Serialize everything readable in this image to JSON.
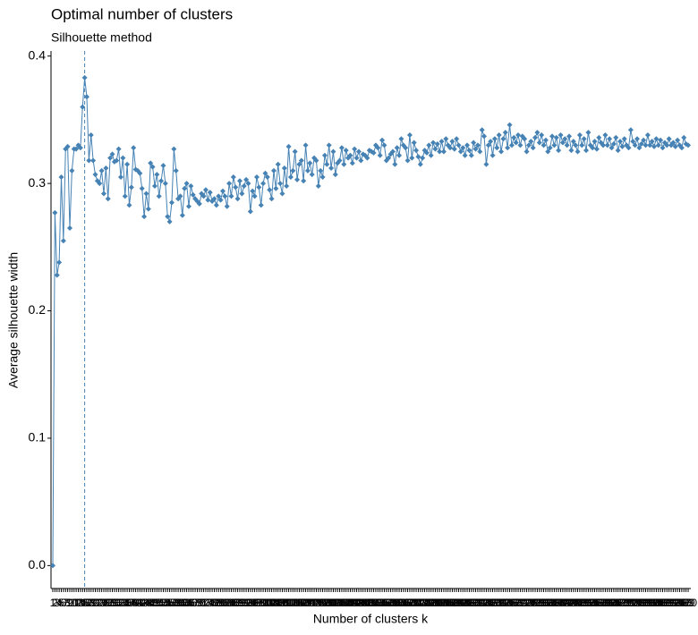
{
  "chart_data": {
    "type": "line",
    "title": "Optimal number of clusters",
    "subtitle": "Silhouette method",
    "x_label": "Number of clusters k",
    "y_label": "Average silhouette width",
    "color": "#4682b4",
    "vline": "16",
    "ylim": [
      -0.018,
      0.404
    ],
    "yticks": [
      {
        "value": 0,
        "label": "0.0"
      },
      0.1,
      0.2,
      0.3,
      0.4
    ],
    "categories": [
      "1",
      "2",
      "3",
      "4",
      "5",
      "6",
      "7",
      "8",
      "9",
      "10",
      "11",
      "12",
      "13",
      "14",
      "15",
      "16",
      "17",
      "18",
      "19",
      "20",
      "21",
      "22",
      "23",
      "24",
      "25",
      "26",
      "27",
      "28",
      "29",
      "30",
      "31",
      "32",
      "33",
      "34",
      "35",
      "36",
      "37",
      "38",
      "39",
      "40",
      "41",
      "42",
      "43",
      "44",
      "45",
      "46",
      "47",
      "48",
      "49",
      "50",
      "51",
      "52",
      "53",
      "54",
      "55",
      "56",
      "57",
      "58",
      "59",
      "60",
      "61",
      "62",
      "63",
      "64",
      "65",
      "66",
      "67",
      "68",
      "69",
      "70",
      "71",
      "72",
      "73",
      "74",
      "75",
      "76",
      "77",
      "78",
      "79",
      "80",
      "81",
      "82",
      "83",
      "84",
      "85",
      "86",
      "87",
      "88",
      "89",
      "90",
      "91",
      "92",
      "93",
      "94",
      "95",
      "96",
      "97",
      "98",
      "99",
      "100",
      "101",
      "102",
      "103",
      "104",
      "105",
      "106",
      "107",
      "108",
      "109",
      "110",
      "111",
      "112",
      "113",
      "114",
      "115",
      "116",
      "117",
      "118",
      "119",
      "120",
      "121",
      "122",
      "123",
      "124",
      "125",
      "126",
      "127",
      "128",
      "129",
      "130",
      "131",
      "132",
      "133",
      "134",
      "135",
      "136",
      "137",
      "138",
      "139",
      "140",
      "141",
      "142",
      "143",
      "144",
      "145",
      "146",
      "147",
      "148",
      "149",
      "150",
      "151",
      "152",
      "153",
      "154",
      "155",
      "156",
      "157",
      "158",
      "159",
      "160",
      "161",
      "162",
      "163",
      "164",
      "165",
      "166",
      "167",
      "168",
      "169",
      "170",
      "171",
      "172",
      "173",
      "174",
      "175",
      "176",
      "177",
      "178",
      "179",
      "180",
      "181",
      "182",
      "183",
      "184",
      "185",
      "186",
      "187",
      "188",
      "189",
      "190",
      "191",
      "192",
      "193",
      "194",
      "195",
      "196",
      "197",
      "198",
      "199",
      "200",
      "201",
      "202",
      "203",
      "204",
      "205",
      "206",
      "207",
      "208",
      "209",
      "210",
      "211",
      "212",
      "213",
      "214",
      "215",
      "216",
      "217",
      "218",
      "219",
      "220",
      "221",
      "222",
      "223",
      "224",
      "225",
      "226",
      "227",
      "228",
      "229",
      "230",
      "231",
      "232",
      "233",
      "234",
      "235",
      "236",
      "237",
      "238",
      "239",
      "240",
      "241",
      "242",
      "243",
      "244",
      "245",
      "246",
      "247",
      "248",
      "249",
      "250",
      "251",
      "252",
      "253",
      "254",
      "255",
      "256",
      "257",
      "258",
      "259",
      "260",
      "261",
      "262",
      "263",
      "264",
      "265",
      "266",
      "267",
      "268",
      "269",
      "270",
      "271",
      "272",
      "273",
      "274",
      "275",
      "276",
      "277",
      "278",
      "279",
      "280",
      "281",
      "282",
      "283",
      "284",
      "285",
      "286",
      "287",
      "288",
      "289",
      "290",
      "291",
      "292",
      "293",
      "294",
      "295",
      "296",
      "297",
      "298",
      "299",
      "300"
    ],
    "values": [
      0,
      0.277,
      0.228,
      0.238,
      0.305,
      0.255,
      0.327,
      0.329,
      0.265,
      0.31,
      0.327,
      0.327,
      0.33,
      0.328,
      0.36,
      0.383,
      0.368,
      0.318,
      0.338,
      0.318,
      0.307,
      0.302,
      0.3,
      0.31,
      0.292,
      0.312,
      0.288,
      0.32,
      0.323,
      0.317,
      0.318,
      0.327,
      0.305,
      0.32,
      0.29,
      0.315,
      0.283,
      0.297,
      0.328,
      0.311,
      0.31,
      0.308,
      0.296,
      0.274,
      0.292,
      0.28,
      0.316,
      0.313,
      0.298,
      0.307,
      0.29,
      0.302,
      0.314,
      0.3,
      0.274,
      0.27,
      0.285,
      0.327,
      0.31,
      0.288,
      0.29,
      0.275,
      0.296,
      0.3,
      0.282,
      0.298,
      0.291,
      0.288,
      0.286,
      0.284,
      0.292,
      0.29,
      0.295,
      0.287,
      0.293,
      0.286,
      0.288,
      0.283,
      0.29,
      0.287,
      0.294,
      0.29,
      0.282,
      0.3,
      0.29,
      0.305,
      0.297,
      0.288,
      0.302,
      0.292,
      0.298,
      0.303,
      0.3,
      0.278,
      0.294,
      0.29,
      0.305,
      0.297,
      0.283,
      0.3,
      0.308,
      0.305,
      0.295,
      0.288,
      0.31,
      0.296,
      0.315,
      0.3,
      0.292,
      0.312,
      0.298,
      0.329,
      0.305,
      0.31,
      0.325,
      0.303,
      0.315,
      0.318,
      0.302,
      0.33,
      0.31,
      0.316,
      0.307,
      0.32,
      0.318,
      0.298,
      0.31,
      0.305,
      0.322,
      0.315,
      0.33,
      0.312,
      0.325,
      0.307,
      0.316,
      0.318,
      0.328,
      0.315,
      0.326,
      0.32,
      0.322,
      0.316,
      0.327,
      0.32,
      0.325,
      0.318,
      0.323,
      0.322,
      0.32,
      0.326,
      0.325,
      0.324,
      0.33,
      0.328,
      0.322,
      0.334,
      0.33,
      0.318,
      0.32,
      0.323,
      0.325,
      0.315,
      0.328,
      0.322,
      0.335,
      0.33,
      0.328,
      0.318,
      0.338,
      0.32,
      0.332,
      0.326,
      0.321,
      0.315,
      0.32,
      0.326,
      0.324,
      0.33,
      0.322,
      0.332,
      0.327,
      0.331,
      0.325,
      0.333,
      0.325,
      0.335,
      0.33,
      0.328,
      0.333,
      0.327,
      0.335,
      0.33,
      0.325,
      0.328,
      0.322,
      0.33,
      0.326,
      0.322,
      0.332,
      0.327,
      0.33,
      0.325,
      0.342,
      0.337,
      0.315,
      0.33,
      0.333,
      0.322,
      0.335,
      0.328,
      0.338,
      0.325,
      0.335,
      0.34,
      0.328,
      0.346,
      0.33,
      0.336,
      0.332,
      0.338,
      0.33,
      0.337,
      0.335,
      0.325,
      0.33,
      0.333,
      0.328,
      0.336,
      0.34,
      0.332,
      0.338,
      0.33,
      0.334,
      0.325,
      0.328,
      0.337,
      0.33,
      0.336,
      0.326,
      0.338,
      0.332,
      0.335,
      0.33,
      0.337,
      0.326,
      0.333,
      0.33,
      0.325,
      0.338,
      0.33,
      0.335,
      0.326,
      0.34,
      0.33,
      0.328,
      0.333,
      0.327,
      0.336,
      0.332,
      0.33,
      0.338,
      0.33,
      0.335,
      0.328,
      0.331,
      0.336,
      0.326,
      0.333,
      0.329,
      0.335,
      0.33,
      0.328,
      0.342,
      0.333,
      0.33,
      0.335,
      0.328,
      0.331,
      0.334,
      0.33,
      0.338,
      0.33,
      0.333,
      0.329,
      0.335,
      0.33,
      0.334,
      0.328,
      0.332,
      0.33,
      0.335,
      0.33,
      0.332,
      0.329,
      0.334,
      0.33,
      0.328,
      0.336,
      0.331,
      0.33
    ]
  }
}
